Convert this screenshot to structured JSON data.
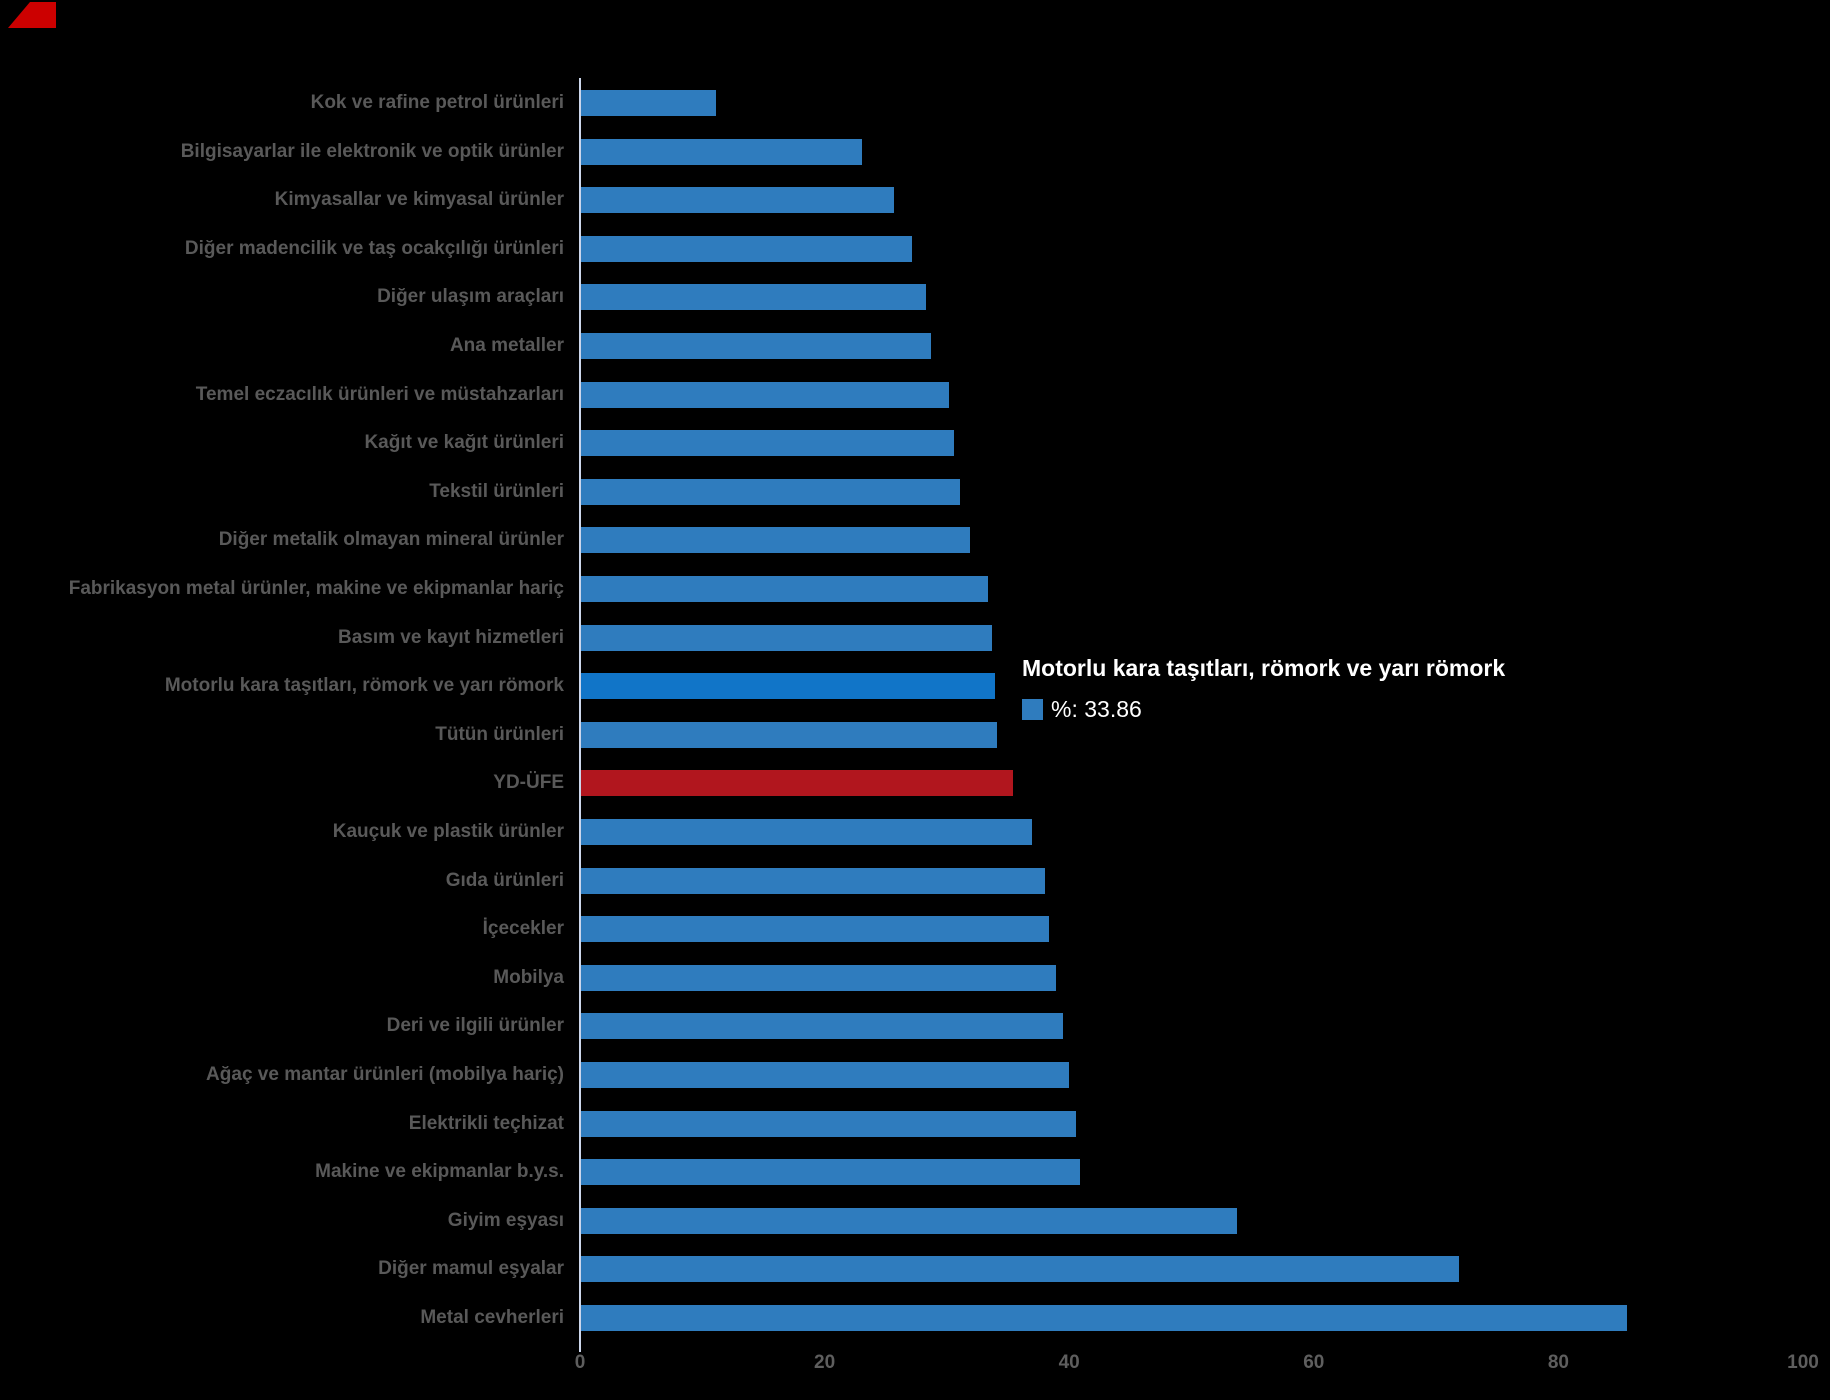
{
  "chart_data": {
    "type": "bar",
    "orientation": "horizontal",
    "title": "",
    "xlabel": "",
    "ylabel": "",
    "xlim": [
      0,
      100
    ],
    "xticks": [
      "0",
      "20",
      "40",
      "60",
      "80",
      "100"
    ],
    "grid": false,
    "legend": false,
    "categories": [
      "Kok ve rafine petrol ürünleri",
      "Bilgisayarlar ile elektronik ve optik ürünler",
      "Kimyasallar ve kimyasal ürünler",
      "Diğer madencilik ve taş ocakçılığı ürünleri",
      "Diğer ulaşım araçları",
      "Ana metaller",
      "Temel eczacılık ürünleri ve müstahzarları",
      "Kağıt ve kağıt ürünleri",
      "Tekstil ürünleri",
      "Diğer metalik olmayan mineral ürünler",
      "Fabrikasyon metal ürünler, makine ve ekipmanlar hariç",
      "Basım ve kayıt hizmetleri",
      "Motorlu kara taşıtları, römork ve yarı römork",
      "Tütün ürünleri",
      "YD-ÜFE",
      "Kauçuk ve plastik ürünler",
      "Gıda ürünleri",
      "İçecekler",
      "Mobilya",
      "Deri ve ilgili ürünler",
      "Ağaç ve mantar ürünleri (mobilya hariç)",
      "Elektrikli teçhizat",
      "Makine ve ekipmanlar b.y.s.",
      "Giyim eşyası",
      "Diğer mamul eşyalar",
      "Metal cevherleri"
    ],
    "values": [
      11.0,
      23.0,
      25.6,
      27.1,
      28.2,
      28.6,
      30.1,
      30.5,
      31.0,
      31.8,
      33.3,
      33.6,
      33.86,
      34.0,
      35.3,
      36.9,
      37.9,
      38.3,
      38.8,
      39.4,
      39.9,
      40.5,
      40.8,
      53.6,
      71.8,
      85.5
    ],
    "highlight_category": "Motorlu kara taşıtları, römork ve yarı römork",
    "highlight_index": 12,
    "red_category": "YD-ÜFE",
    "red_index": 14
  },
  "tooltip": {
    "title": "Motorlu kara taşıtları, römork ve yarı römork",
    "value_label": "%: 33.86",
    "marker_color": "#2F7CBE"
  },
  "colors": {
    "background": "#000000",
    "bar_default": "#2F7CBE",
    "bar_highlight": "#1175C8",
    "bar_red": "#B1161E",
    "axis_line": "#CCD6EB",
    "category_label": "#595959",
    "tick_label": "#5E5E5E",
    "tooltip_text": "#FFFFFF",
    "corner_mark": "#CC0000"
  }
}
